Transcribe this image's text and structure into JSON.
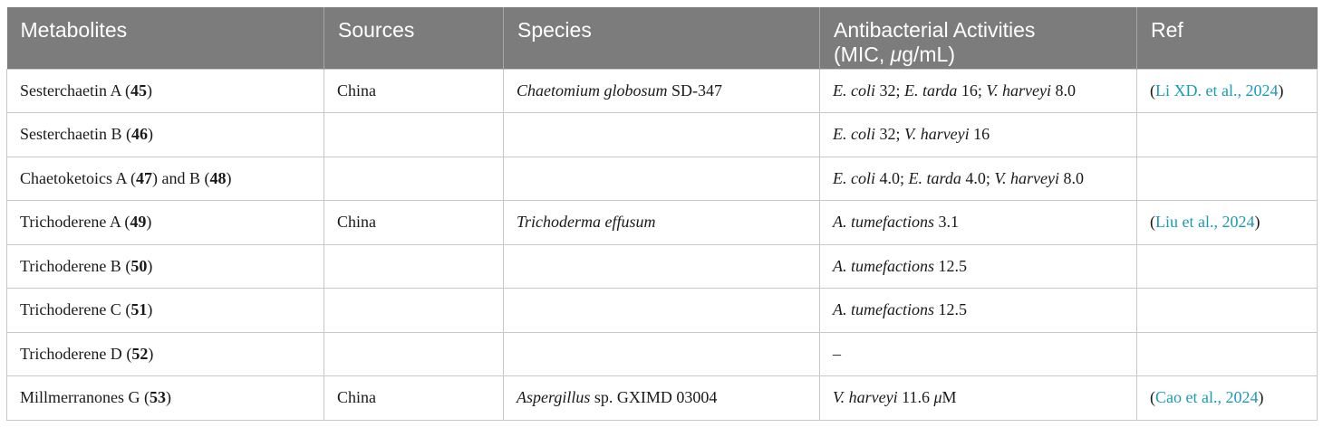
{
  "headers": {
    "metabolites": "Metabolites",
    "sources": "Sources",
    "species": "Species",
    "activities_line1": "Antibacterial Activities",
    "activities_line2_a": "(MIC, ",
    "activities_line2_mu": "μ",
    "activities_line2_b": "g/mL)",
    "ref": "Ref"
  },
  "rows": [
    {
      "name": "Sesterchaetin A",
      "num": "45",
      "source": "China",
      "species_italic": "Chaetomium globosum",
      "species_plain": " SD-347",
      "activities": [
        {
          "organism": "E. coli",
          "value": " 32; "
        },
        {
          "organism": "E. tarda",
          "value": " 16; "
        },
        {
          "organism": "V. harveyi",
          "value": " 8.0"
        }
      ],
      "ref_open": "(",
      "ref_link": "Li XD. et al., 2024",
      "ref_close": ")"
    },
    {
      "name": "Sesterchaetin B",
      "num": "46",
      "activities": [
        {
          "organism": "E. coli",
          "value": " 32; "
        },
        {
          "organism": "V. harveyi",
          "value": " 16"
        }
      ]
    },
    {
      "name": "Chaetoketoics A",
      "num": "47",
      "name2": "and B",
      "num2": "48",
      "activities": [
        {
          "organism": "E. coli",
          "value": " 4.0; "
        },
        {
          "organism": "E. tarda",
          "value": " 4.0; "
        },
        {
          "organism": "V. harveyi",
          "value": " 8.0"
        }
      ]
    },
    {
      "name": "Trichoderene A",
      "num": "49",
      "source": "China",
      "species_italic": "Trichoderma effusum",
      "activities": [
        {
          "organism": "A. tumefactions",
          "value": " 3.1"
        }
      ],
      "ref_open": "(",
      "ref_link": "Liu et al., 2024",
      "ref_close": ")"
    },
    {
      "name": "Trichoderene B",
      "num": "50",
      "activities": [
        {
          "organism": "A. tumefactions",
          "value": " 12.5"
        }
      ]
    },
    {
      "name": "Trichoderene C",
      "num": "51",
      "activities": [
        {
          "organism": "A. tumefactions",
          "value": " 12.5"
        }
      ]
    },
    {
      "name": "Trichoderene D",
      "num": "52",
      "activities_plain": "–"
    },
    {
      "name": "Millmerranones G",
      "num": "53",
      "source": "China",
      "species_italic": "Aspergillus",
      "species_plain": " sp. GXIMD 03004",
      "activities": [
        {
          "organism": "V. harveyi",
          "value": " 11.6 ",
          "unit_mu": "μ",
          "unit_rest": "M"
        }
      ],
      "ref_open": "(",
      "ref_link": "Cao et al., 2024",
      "ref_close": ")"
    }
  ]
}
